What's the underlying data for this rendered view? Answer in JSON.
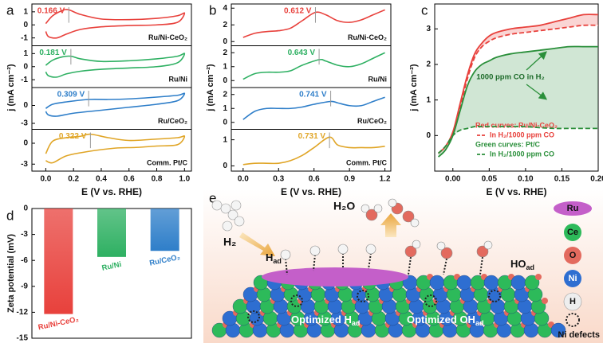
{
  "chart_data": [
    {
      "type": "line",
      "label": "a",
      "xlabel": "E (V vs. RHE)",
      "ylabel": "j (mA cm⁻²)",
      "xlim": [
        -0.1,
        1.05
      ],
      "xticks": [
        {
          "value": 0,
          "label": "0.0"
        },
        {
          "value": 0.2,
          "label": "0.2"
        },
        {
          "value": 0.4,
          "label": "0.4"
        },
        {
          "value": 0.6,
          "label": "0.6"
        },
        {
          "value": 0.8,
          "label": "0.8"
        },
        {
          "value": 1,
          "label": "1.0"
        }
      ],
      "subplots": [
        {
          "name": "Ru/Ni-CeO₂",
          "color": "#e8413c",
          "ylim": [
            -1.6,
            1.6
          ],
          "yticks": [
            -1,
            0,
            1
          ],
          "peak": {
            "value": 0.166,
            "label": "0.166 V"
          },
          "x": [
            0,
            0.05,
            0.12,
            0.166,
            0.25,
            0.4,
            0.6,
            0.8,
            0.95,
            1.0,
            0.95,
            0.8,
            0.6,
            0.4,
            0.25,
            0.15,
            0.08,
            0.02,
            0
          ],
          "values": [
            0.1,
            0.7,
            1.1,
            1.15,
            0.8,
            0.45,
            0.4,
            0.5,
            0.7,
            0.9,
            0.2,
            0.0,
            -0.05,
            -0.15,
            -0.35,
            -0.7,
            -1.0,
            -0.9,
            -0.5
          ]
        },
        {
          "name": "Ru/Ni",
          "color": "#2eb062",
          "ylim": [
            -1.6,
            1.6
          ],
          "yticks": [
            -1,
            0,
            1
          ],
          "peak": {
            "value": 0.181,
            "label": "0.181 V"
          },
          "x": [
            0,
            0.05,
            0.12,
            0.181,
            0.25,
            0.4,
            0.6,
            0.8,
            0.95,
            1.0,
            0.95,
            0.8,
            0.6,
            0.4,
            0.25,
            0.15,
            0.08,
            0.02,
            0
          ],
          "values": [
            0.1,
            0.5,
            0.75,
            0.8,
            0.6,
            0.4,
            0.45,
            0.6,
            0.8,
            1.0,
            0.3,
            0.0,
            -0.1,
            -0.2,
            -0.35,
            -0.55,
            -0.8,
            -0.7,
            -0.4
          ]
        },
        {
          "name": "Ru/CeO₂",
          "color": "#2e7ec9",
          "ylim": [
            -4,
            3
          ],
          "yticks": [
            -3,
            0
          ],
          "peak": {
            "value": 0.309,
            "label": "0.309 V"
          },
          "x": [
            0,
            0.05,
            0.15,
            0.309,
            0.45,
            0.6,
            0.8,
            0.95,
            1.0,
            0.95,
            0.8,
            0.6,
            0.4,
            0.2,
            0.08,
            0.02,
            0
          ],
          "values": [
            -0.5,
            0.2,
            0.6,
            1.0,
            1.0,
            1.1,
            1.4,
            1.7,
            2.0,
            0.8,
            0.2,
            -0.3,
            -0.8,
            -1.3,
            -1.8,
            -1.6,
            -1.0
          ]
        },
        {
          "name": "Comm. Pt/C",
          "color": "#e0a526",
          "ylim": [
            -4,
            2
          ],
          "yticks": [
            -3,
            0
          ],
          "peak": {
            "value": 0.322,
            "label": "0.322 V"
          },
          "x": [
            0,
            0.05,
            0.15,
            0.25,
            0.322,
            0.45,
            0.6,
            0.8,
            0.95,
            1.0,
            0.95,
            0.8,
            0.65,
            0.5,
            0.3,
            0.15,
            0.05,
            0
          ],
          "values": [
            -1.5,
            0.3,
            0.8,
            1.0,
            1.3,
            0.8,
            0.4,
            0.6,
            0.8,
            1.0,
            -0.2,
            -0.4,
            -0.6,
            -0.7,
            -1.2,
            -1.8,
            -2.8,
            -2.5
          ]
        }
      ]
    },
    {
      "type": "line",
      "label": "b",
      "xlabel": "E (V vs. RHE)",
      "ylabel": "j (mA cm⁻²)",
      "xlim": [
        -0.1,
        1.25
      ],
      "xticks": [
        {
          "value": 0,
          "label": "0.0"
        },
        {
          "value": 0.3,
          "label": "0.3"
        },
        {
          "value": 0.6,
          "label": "0.6"
        },
        {
          "value": 0.9,
          "label": "0.9"
        },
        {
          "value": 1.2,
          "label": "1.2"
        }
      ],
      "subplots": [
        {
          "name": "Ru/Ni-CeO₂",
          "color": "#e8413c",
          "ylim": [
            -0.5,
            4.5
          ],
          "yticks": [
            0,
            2,
            4
          ],
          "peak": {
            "value": 0.612,
            "label": "0.612 V"
          },
          "x": [
            0,
            0.1,
            0.2,
            0.3,
            0.4,
            0.5,
            0.612,
            0.7,
            0.8,
            0.9,
            1.0,
            1.1,
            1.2
          ],
          "values": [
            0.5,
            1.0,
            1.2,
            1.3,
            1.6,
            2.5,
            3.5,
            3.2,
            2.5,
            2.3,
            2.6,
            3.2,
            3.8
          ]
        },
        {
          "name": "Ru/Ni",
          "color": "#2eb062",
          "ylim": [
            -0.5,
            2.5
          ],
          "yticks": [
            0,
            1,
            2
          ],
          "peak": {
            "value": 0.643,
            "label": "0.643 V"
          },
          "x": [
            0,
            0.1,
            0.2,
            0.3,
            0.4,
            0.5,
            0.643,
            0.7,
            0.8,
            0.9,
            1.0,
            1.1,
            1.2
          ],
          "values": [
            0.1,
            0.5,
            0.6,
            0.6,
            0.7,
            1.1,
            1.5,
            1.4,
            1.1,
            1.0,
            1.2,
            1.6,
            2.0
          ]
        },
        {
          "name": "Ru/CeO₂",
          "color": "#2e7ec9",
          "ylim": [
            -0.5,
            2.5
          ],
          "yticks": [
            0,
            1,
            2
          ],
          "peak": {
            "value": 0.741,
            "label": "0.741 V"
          },
          "x": [
            0,
            0.1,
            0.2,
            0.3,
            0.4,
            0.5,
            0.6,
            0.741,
            0.8,
            0.9,
            1.0,
            1.1,
            1.2
          ],
          "values": [
            0.2,
            0.8,
            1.0,
            1.0,
            1.0,
            1.1,
            1.3,
            1.5,
            1.4,
            1.2,
            1.2,
            1.5,
            1.8
          ]
        },
        {
          "name": "Comm. Pt/C",
          "color": "#e0a526",
          "ylim": [
            -0.2,
            1.4
          ],
          "yticks": [
            0,
            1
          ],
          "peak": {
            "value": 0.731,
            "label": "0.731 V"
          },
          "x": [
            0,
            0.1,
            0.2,
            0.3,
            0.4,
            0.5,
            0.6,
            0.731,
            0.8,
            0.9,
            1.0,
            1.1,
            1.2
          ],
          "values": [
            0.05,
            0.1,
            0.1,
            0.1,
            0.2,
            0.4,
            0.7,
            1.1,
            0.8,
            0.7,
            0.7,
            0.7,
            0.75
          ]
        }
      ]
    },
    {
      "type": "line",
      "label": "c",
      "xlabel": "E (V vs. RHE)",
      "ylabel": "j (mA cm⁻²)",
      "xlim": [
        -0.025,
        0.2
      ],
      "ylim": [
        -1,
        3.7
      ],
      "xticks": [
        {
          "value": 0,
          "label": "0.00"
        },
        {
          "value": 0.05,
          "label": "0.05"
        },
        {
          "value": 0.1,
          "label": "0.10"
        },
        {
          "value": 0.15,
          "label": "0.15"
        },
        {
          "value": 0.2,
          "label": "0.20"
        }
      ],
      "yticks": [
        0,
        1,
        2,
        3
      ],
      "annotation": "1000 ppm CO in H₂",
      "x": [
        -0.02,
        -0.01,
        0,
        0.01,
        0.02,
        0.03,
        0.04,
        0.05,
        0.06,
        0.08,
        0.1,
        0.12,
        0.14,
        0.16,
        0.18,
        0.2
      ],
      "series": [
        {
          "name": "Red curves: Ru/Ni-CeO₂",
          "color": "#e8413c",
          "dash": false,
          "values": [
            -0.5,
            -0.3,
            0.1,
            0.9,
            1.7,
            2.3,
            2.6,
            2.8,
            2.9,
            3.0,
            3.05,
            3.1,
            3.2,
            3.3,
            3.4,
            3.4
          ]
        },
        {
          "name": "In H₂/1000 ppm CO",
          "color": "#e8413c",
          "dash": true,
          "values": [
            -0.5,
            -0.3,
            0.05,
            0.8,
            1.6,
            2.2,
            2.5,
            2.65,
            2.75,
            2.85,
            2.9,
            2.95,
            3.0,
            3.05,
            3.1,
            3.1
          ]
        },
        {
          "name": "Green curves: Pt/C",
          "color": "#2a8f3a",
          "dash": false,
          "values": [
            -0.6,
            -0.4,
            0,
            0.7,
            1.4,
            1.8,
            2.0,
            2.1,
            2.2,
            2.3,
            2.35,
            2.4,
            2.45,
            2.5,
            2.5,
            2.5
          ]
        },
        {
          "name": "In H₂/1000 ppm CO",
          "color": "#2a8f3a",
          "dash": true,
          "values": [
            -0.5,
            -0.3,
            0,
            0.15,
            0.2,
            0.25,
            0.25,
            0.25,
            0.25,
            0.25,
            0.25,
            0.22,
            0.2,
            0.2,
            0.2,
            0.2
          ]
        }
      ]
    },
    {
      "type": "bar",
      "label": "d",
      "ylabel": "Zeta potential (mV)",
      "categories": [
        "Ru/Ni-CeO₂",
        "Ru/Ni",
        "Ru/CeO₂"
      ],
      "values": [
        -12.2,
        -5.6,
        -4.9
      ],
      "colors": [
        "#e8413c",
        "#2eb062",
        "#2e7ec9"
      ],
      "ylim": [
        -15,
        0
      ],
      "yticks": [
        0,
        -3,
        -6,
        -9,
        -12,
        -15
      ]
    }
  ],
  "diagram": {
    "label": "e",
    "h2": "H₂",
    "h2o": "H₂O",
    "h_ad": {
      "base": "H",
      "sub": "ad"
    },
    "ho_ad": {
      "base": "HO",
      "sub": "ad"
    },
    "opt_h": {
      "base": "Optimized H",
      "sub": "ad"
    },
    "opt_oh": {
      "base": "Optimized OH",
      "sub": "ad"
    },
    "legend": [
      "Ru",
      "Ce",
      "O",
      "Ni",
      "H",
      "Ni defects"
    ]
  }
}
